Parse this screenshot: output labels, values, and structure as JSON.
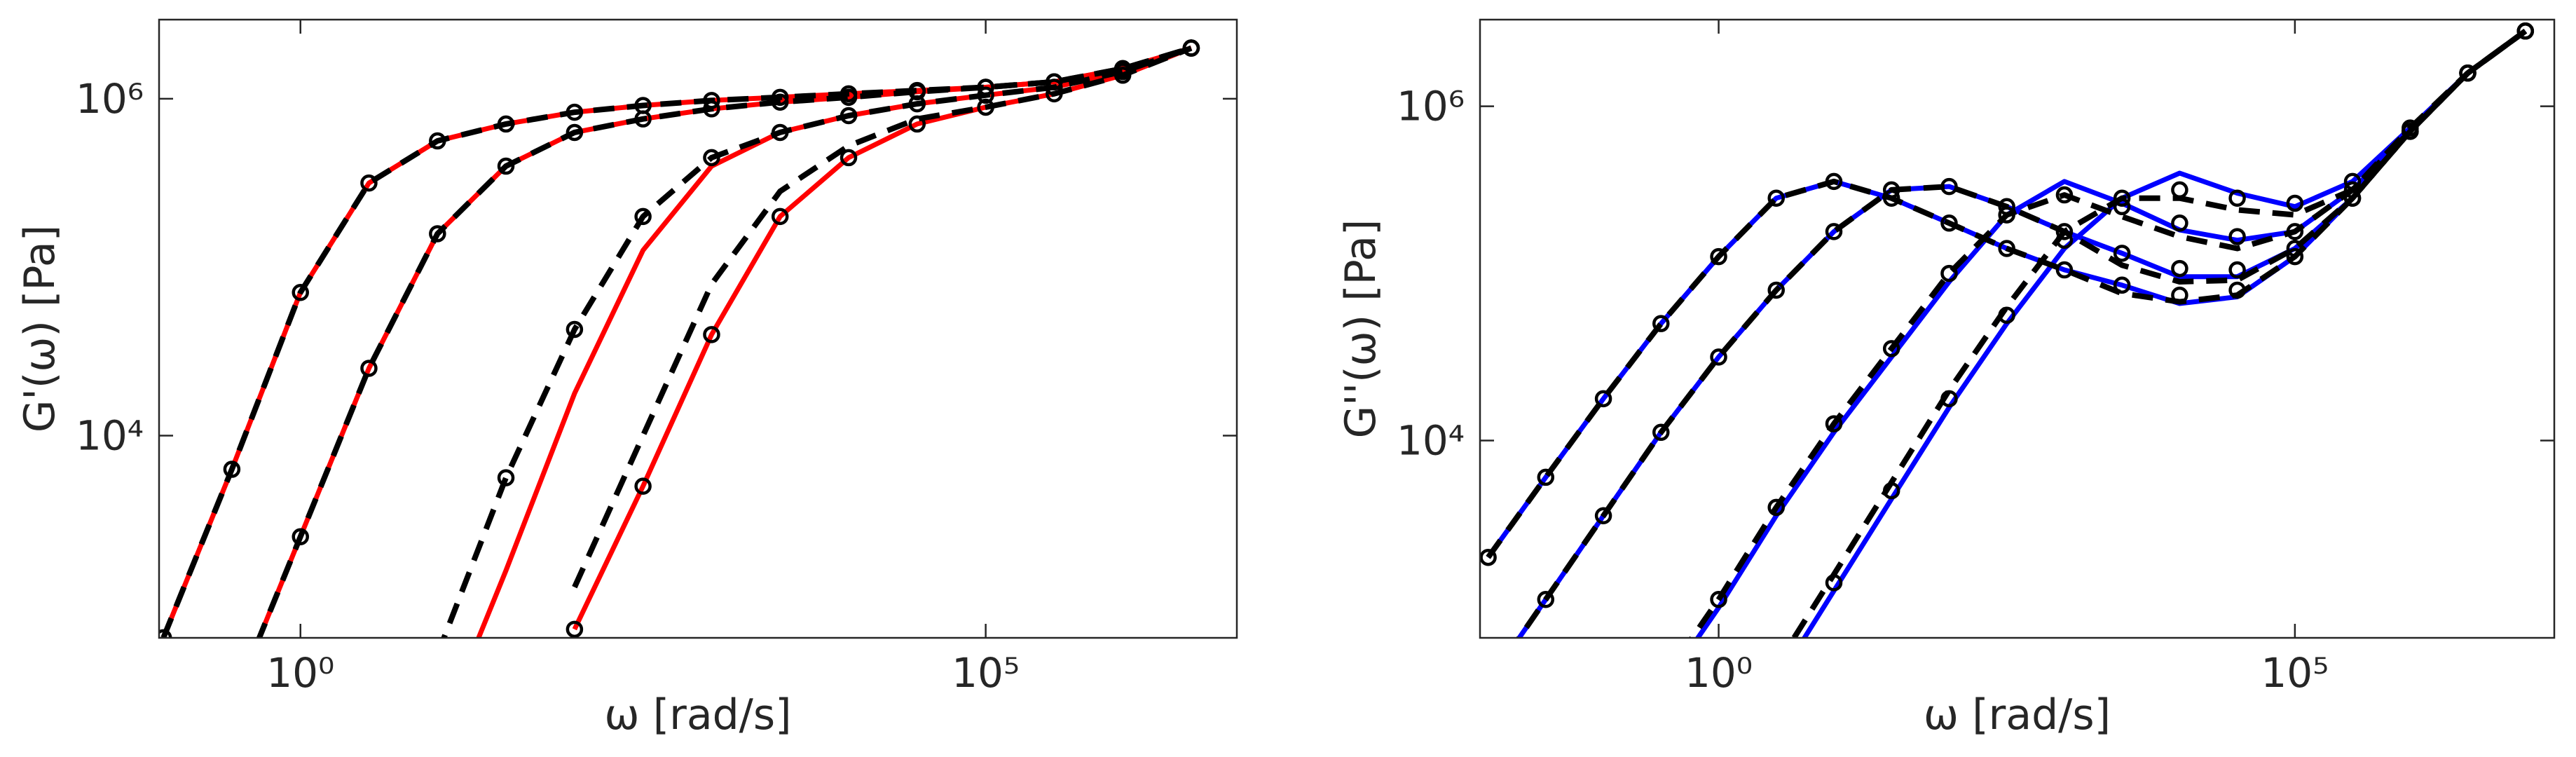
{
  "chart_data": [
    {
      "type": "line",
      "xscale": "log",
      "yscale": "log",
      "xlabel": "ω [rad/s]",
      "ylabel": "G'(ω) [Pa]",
      "xlim": [
        0.093,
        6800000
      ],
      "ylim": [
        630,
        2950000
      ],
      "xticks": [
        {
          "value": 1,
          "label": "10⁰"
        },
        {
          "value": 100000,
          "label": "10⁵"
        }
      ],
      "yticks": [
        {
          "value": 10000,
          "label": "10⁴"
        },
        {
          "value": 1000000,
          "label": "10⁶"
        }
      ],
      "x": [
        0.1,
        0.316,
        1,
        3.16,
        10,
        31.6,
        100,
        316,
        1000,
        3160,
        10000,
        31600,
        100000,
        316000,
        1000000,
        3160000
      ],
      "series": [
        {
          "color": "#ff0000",
          "style": "solid",
          "values": [
            631,
            6310,
            70800,
            316000,
            562000,
            708000,
            832000,
            912000,
            977000,
            1020000,
            1070000,
            1120000,
            1170000,
            1260000,
            1510000,
            2000000
          ]
        },
        {
          "color": "#ff0000",
          "style": "solid",
          "values": [
            null,
            251,
            2510,
            25100,
            158000,
            398000,
            631000,
            759000,
            871000,
            955000,
            1020000,
            1100000,
            1170000,
            1260000,
            1510000,
            2000000
          ]
        },
        {
          "color": "#ff0000",
          "style": "solid",
          "values": [
            null,
            null,
            null,
            null,
            158,
            1580,
            17800,
            126000,
            398000,
            631000,
            794000,
            933000,
            1050000,
            1170000,
            1450000,
            2000000
          ]
        },
        {
          "color": "#ff0000",
          "style": "solid",
          "values": [
            null,
            null,
            null,
            null,
            null,
            null,
            708,
            5010,
            39800,
            200000,
            447000,
            708000,
            891000,
            1070000,
            1380000,
            2000000
          ]
        },
        {
          "color": "#000000",
          "style": "dashed",
          "values": [
            631,
            6310,
            70800,
            316000,
            562000,
            708000,
            832000,
            912000,
            977000,
            1020000,
            1070000,
            1120000,
            1170000,
            1260000,
            1510000,
            2000000
          ]
        },
        {
          "color": "#000000",
          "style": "dashed",
          "values": [
            null,
            251,
            2510,
            25100,
            158000,
            398000,
            631000,
            759000,
            871000,
            955000,
            1020000,
            1100000,
            1170000,
            1260000,
            1510000,
            2000000
          ]
        },
        {
          "color": "#000000",
          "style": "dashed",
          "values": [
            null,
            null,
            null,
            null,
            501,
            5620,
            42700,
            200000,
            447000,
            631000,
            794000,
            933000,
            1050000,
            1170000,
            1450000,
            2000000
          ]
        },
        {
          "color": "#000000",
          "style": "dashed",
          "values": [
            null,
            null,
            null,
            null,
            null,
            null,
            1260,
            10000,
            79400,
            282000,
            525000,
            759000,
            891000,
            1070000,
            1380000,
            2000000
          ]
        },
        {
          "color": "#000000",
          "style": "markers",
          "values": [
            631,
            6310,
            70800,
            316000,
            562000,
            708000,
            832000,
            912000,
            977000,
            1020000,
            1070000,
            1120000,
            1170000,
            1260000,
            1510000,
            2000000
          ]
        },
        {
          "color": "#000000",
          "style": "markers",
          "values": [
            null,
            251,
            2510,
            25100,
            158000,
            398000,
            631000,
            759000,
            871000,
            955000,
            1020000,
            1100000,
            1170000,
            1260000,
            1510000,
            2000000
          ]
        },
        {
          "color": "#000000",
          "style": "markers",
          "values": [
            null,
            null,
            null,
            null,
            501,
            5620,
            42700,
            200000,
            447000,
            631000,
            794000,
            933000,
            1050000,
            1170000,
            1450000,
            2000000
          ]
        },
        {
          "color": "#000000",
          "style": "markers",
          "values": [
            null,
            null,
            null,
            null,
            null,
            null,
            708,
            5010,
            39800,
            200000,
            447000,
            708000,
            891000,
            1070000,
            1380000,
            2000000
          ]
        }
      ]
    },
    {
      "type": "line",
      "xscale": "log",
      "yscale": "log",
      "xlabel": "ω [rad/s]",
      "ylabel": "G''(ω) [Pa]",
      "xlim": [
        0.0085,
        17800000
      ],
      "ylim": [
        660,
        3300000
      ],
      "xticks": [
        {
          "value": 1,
          "label": "10⁰"
        },
        {
          "value": 100000,
          "label": "10⁵"
        }
      ],
      "yticks": [
        {
          "value": 10000,
          "label": "10⁴"
        },
        {
          "value": 1000000,
          "label": "10⁶"
        }
      ],
      "x": [
        0.01,
        0.0316,
        0.1,
        0.316,
        1,
        3.16,
        10,
        31.6,
        100,
        316,
        1000,
        3160,
        10000,
        31600,
        100000,
        316000,
        1000000,
        3160000,
        10000000
      ],
      "series": [
        {
          "color": "#0000ff",
          "style": "solid",
          "values": [
            2000,
            6030,
            17800,
            50100,
            126000,
            282000,
            355000,
            282000,
            200000,
            141000,
            105000,
            85100,
            66100,
            72400,
            126000,
            282000,
            708000,
            1580000,
            2820000
          ]
        },
        {
          "color": "#0000ff",
          "style": "solid",
          "values": [
            355,
            1120,
            3550,
            11200,
            31600,
            79400,
            178000,
            316000,
            331000,
            251000,
            178000,
            132000,
            95500,
            95500,
            141000,
            282000,
            708000,
            1580000,
            2820000
          ]
        },
        {
          "color": "#0000ff",
          "style": "solid",
          "values": [
            null,
            null,
            null,
            316,
            1000,
            3550,
            11200,
            31600,
            89100,
            224000,
            355000,
            263000,
            182000,
            158000,
            178000,
            316000,
            708000,
            1580000,
            2820000
          ]
        },
        {
          "color": "#0000ff",
          "style": "solid",
          "values": [
            null,
            null,
            null,
            null,
            null,
            355,
            1260,
            4470,
            15800,
            50100,
            141000,
            282000,
            398000,
            302000,
            251000,
            355000,
            741000,
            1580000,
            2820000
          ]
        },
        {
          "color": "#000000",
          "style": "dashed",
          "values": [
            2000,
            6030,
            17800,
            50100,
            126000,
            282000,
            355000,
            282000,
            200000,
            141000,
            105000,
            75900,
            67600,
            74100,
            126000,
            282000,
            708000,
            1580000,
            2820000
          ]
        },
        {
          "color": "#000000",
          "style": "dashed",
          "values": [
            355,
            1120,
            3550,
            11200,
            31600,
            79400,
            178000,
            316000,
            331000,
            251000,
            178000,
            112000,
            89100,
            91200,
            141000,
            282000,
            708000,
            1580000,
            2820000
          ]
        },
        {
          "color": "#000000",
          "style": "dashed",
          "values": [
            null,
            null,
            null,
            355,
            1120,
            3980,
            12600,
            35500,
            100000,
            224000,
            295000,
            219000,
            166000,
            141000,
            178000,
            316000,
            708000,
            1580000,
            2820000
          ]
        },
        {
          "color": "#000000",
          "style": "dashed",
          "values": [
            null,
            null,
            null,
            null,
            null,
            447,
            1580,
            5620,
            20000,
            63100,
            178000,
            282000,
            282000,
            240000,
            224000,
            316000,
            741000,
            1580000,
            2820000
          ]
        },
        {
          "color": "#000000",
          "style": "markers",
          "values": [
            2000,
            6030,
            17800,
            50100,
            126000,
            282000,
            355000,
            282000,
            200000,
            141000,
            105000,
            85100,
            74100,
            79400,
            126000,
            282000,
            708000,
            1580000,
            2820000
          ]
        },
        {
          "color": "#000000",
          "style": "markers",
          "values": [
            355,
            1120,
            3550,
            11200,
            31600,
            79400,
            178000,
            316000,
            331000,
            251000,
            178000,
            132000,
            107000,
            105000,
            141000,
            282000,
            708000,
            1580000,
            2820000
          ]
        },
        {
          "color": "#000000",
          "style": "markers",
          "values": [
            null,
            null,
            null,
            355,
            1120,
            3980,
            12600,
            35500,
            100000,
            224000,
            295000,
            251000,
            200000,
            166000,
            178000,
            316000,
            708000,
            1580000,
            2820000
          ]
        },
        {
          "color": "#000000",
          "style": "markers",
          "values": [
            null,
            null,
            null,
            null,
            null,
            398,
            1410,
            5010,
            17800,
            56200,
            158000,
            282000,
            316000,
            282000,
            263000,
            355000,
            741000,
            1580000,
            2820000
          ]
        }
      ]
    }
  ]
}
